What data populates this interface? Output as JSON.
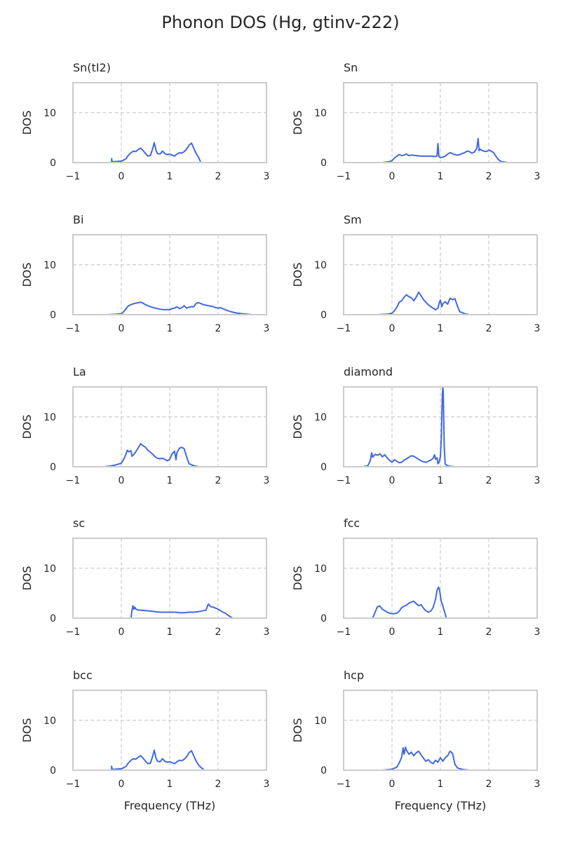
{
  "figure": {
    "title": "Phonon DOS (Hg, gtinv-222)"
  },
  "style": {
    "line_color": "#4169e1",
    "grid_color": "#cccccc",
    "axes_color": "#cccccc"
  },
  "chart_data": [
    {
      "type": "line",
      "title": "Sn(tI2)",
      "xlabel": "",
      "ylabel": "DOS",
      "xlim": [
        -1,
        3
      ],
      "ylim": [
        0,
        16
      ],
      "xticks": [
        -1,
        0,
        1,
        2,
        3
      ],
      "yticks": [
        0,
        10
      ],
      "grid": true,
      "series": [
        {
          "x": [
            -0.2,
            -0.2,
            -0.19,
            -0.15,
            0,
            0.05,
            0.1,
            0.15,
            0.2,
            0.25,
            0.3,
            0.35,
            0.4,
            0.45,
            0.5,
            0.55,
            0.6,
            0.65,
            0.68,
            0.7,
            0.72,
            0.75,
            0.8,
            0.85,
            0.9,
            0.95,
            1.0,
            1.05,
            1.1,
            1.15,
            1.2,
            1.25,
            1.3,
            1.35,
            1.4,
            1.45,
            1.5,
            1.55,
            1.6,
            1.62,
            1.64
          ],
          "y": [
            0.1,
            0.8,
            0.15,
            0.2,
            0.3,
            0.5,
            0.8,
            1.5,
            2.0,
            2.3,
            2.2,
            2.6,
            2.9,
            2.4,
            1.8,
            1.3,
            1.4,
            2.8,
            4.0,
            3.2,
            2.3,
            1.8,
            1.7,
            2.3,
            1.8,
            1.6,
            1.7,
            1.5,
            1.3,
            1.7,
            2.0,
            1.9,
            2.2,
            2.7,
            3.5,
            3.9,
            2.8,
            1.8,
            1.0,
            0.5,
            0.2
          ]
        }
      ]
    },
    {
      "type": "line",
      "title": "Sn",
      "xlabel": "",
      "ylabel": "DOS",
      "xlim": [
        -1,
        3
      ],
      "ylim": [
        0,
        16
      ],
      "xticks": [
        -1,
        0,
        1,
        2,
        3
      ],
      "yticks": [
        0,
        10
      ],
      "grid": true,
      "series": [
        {
          "x": [
            -0.2,
            -0.05,
            0,
            0.05,
            0.1,
            0.15,
            0.2,
            0.25,
            0.3,
            0.35,
            0.4,
            0.5,
            0.6,
            0.7,
            0.8,
            0.9,
            0.93,
            0.95,
            0.97,
            1.0,
            1.05,
            1.1,
            1.15,
            1.2,
            1.25,
            1.3,
            1.35,
            1.4,
            1.45,
            1.5,
            1.55,
            1.6,
            1.65,
            1.7,
            1.75,
            1.78,
            1.8,
            1.82,
            1.85,
            1.9,
            1.95,
            2.0,
            2.05,
            2.1,
            2.15,
            2.2,
            2.25,
            2.4
          ],
          "y": [
            0,
            0.2,
            0.4,
            0.9,
            1.3,
            1.6,
            1.4,
            1.5,
            1.7,
            1.4,
            1.5,
            1.4,
            1.3,
            1.3,
            1.3,
            1.2,
            1.3,
            3.8,
            1.2,
            1.0,
            1.1,
            1.3,
            1.7,
            2.0,
            1.8,
            1.6,
            1.5,
            1.6,
            1.8,
            2.0,
            2.3,
            2.2,
            1.9,
            2.1,
            2.8,
            4.8,
            2.4,
            2.7,
            2.5,
            2.3,
            2.2,
            2.5,
            2.3,
            2.0,
            1.2,
            0.6,
            0.2,
            0
          ]
        }
      ]
    },
    {
      "type": "line",
      "title": "Bi",
      "xlabel": "",
      "ylabel": "DOS",
      "xlim": [
        -1,
        3
      ],
      "ylim": [
        0,
        16
      ],
      "xticks": [
        -1,
        0,
        1,
        2,
        3
      ],
      "yticks": [
        0,
        10
      ],
      "grid": true,
      "series": [
        {
          "x": [
            -0.3,
            -0.1,
            0,
            0.05,
            0.1,
            0.15,
            0.2,
            0.25,
            0.3,
            0.35,
            0.4,
            0.45,
            0.5,
            0.55,
            0.6,
            0.7,
            0.8,
            0.9,
            1.0,
            1.05,
            1.1,
            1.15,
            1.2,
            1.25,
            1.3,
            1.35,
            1.4,
            1.45,
            1.5,
            1.55,
            1.6,
            1.65,
            1.7,
            1.75,
            1.8,
            1.85,
            1.9,
            1.95,
            2.0,
            2.05,
            2.1,
            2.2,
            2.3,
            2.4,
            2.5,
            2.6,
            2.7
          ],
          "y": [
            0,
            0.1,
            0.2,
            0.6,
            1.2,
            1.8,
            2.0,
            2.2,
            2.3,
            2.4,
            2.5,
            2.3,
            2.0,
            1.8,
            1.6,
            1.3,
            1.1,
            1.0,
            1.0,
            1.2,
            1.3,
            1.6,
            1.2,
            1.4,
            1.8,
            1.3,
            1.5,
            1.6,
            1.6,
            2.3,
            2.4,
            2.2,
            2.0,
            1.9,
            1.8,
            1.7,
            1.6,
            1.4,
            1.3,
            1.4,
            1.2,
            0.8,
            0.5,
            0.3,
            0.2,
            0.1,
            0
          ]
        }
      ]
    },
    {
      "type": "line",
      "title": "Sm",
      "xlabel": "",
      "ylabel": "DOS",
      "xlim": [
        -1,
        3
      ],
      "ylim": [
        0,
        16
      ],
      "xticks": [
        -1,
        0,
        1,
        2,
        3
      ],
      "yticks": [
        0,
        10
      ],
      "grid": true,
      "series": [
        {
          "x": [
            -0.3,
            -0.1,
            0,
            0.05,
            0.1,
            0.15,
            0.2,
            0.25,
            0.3,
            0.35,
            0.4,
            0.45,
            0.5,
            0.55,
            0.6,
            0.65,
            0.7,
            0.75,
            0.8,
            0.85,
            0.9,
            0.95,
            0.98,
            1.0,
            1.03,
            1.05,
            1.1,
            1.15,
            1.2,
            1.25,
            1.3,
            1.35,
            1.4,
            1.5,
            1.6
          ],
          "y": [
            0,
            0.1,
            0.3,
            0.8,
            1.5,
            2.5,
            2.8,
            3.5,
            4.0,
            3.6,
            3.4,
            2.8,
            3.5,
            4.5,
            3.8,
            3.0,
            2.5,
            2.0,
            1.6,
            1.3,
            1.0,
            1.3,
            2.5,
            2.9,
            1.6,
            2.2,
            2.6,
            2.1,
            3.3,
            3.0,
            3.2,
            1.8,
            0.6,
            0.2,
            0
          ]
        }
      ]
    },
    {
      "type": "line",
      "title": "La",
      "xlabel": "",
      "ylabel": "DOS",
      "xlim": [
        -1,
        3
      ],
      "ylim": [
        0,
        16
      ],
      "xticks": [
        -1,
        0,
        1,
        2,
        3
      ],
      "yticks": [
        0,
        10
      ],
      "grid": true,
      "series": [
        {
          "x": [
            -0.35,
            -0.2,
            -0.1,
            0,
            0.05,
            0.1,
            0.12,
            0.15,
            0.2,
            0.22,
            0.25,
            0.3,
            0.35,
            0.4,
            0.45,
            0.5,
            0.55,
            0.6,
            0.65,
            0.7,
            0.75,
            0.8,
            0.85,
            0.9,
            0.95,
            1.0,
            1.05,
            1.1,
            1.13,
            1.15,
            1.2,
            1.25,
            1.3,
            1.35,
            1.4,
            1.5,
            1.6
          ],
          "y": [
            0,
            0.2,
            0.4,
            0.7,
            1.5,
            2.6,
            3.3,
            3.0,
            3.2,
            2.1,
            2.4,
            3.0,
            3.8,
            4.6,
            4.2,
            3.9,
            3.3,
            2.9,
            2.5,
            2.0,
            1.7,
            1.6,
            1.7,
            1.5,
            1.2,
            1.5,
            2.6,
            3.1,
            1.4,
            2.8,
            3.7,
            3.9,
            3.6,
            2.0,
            0.6,
            0.2,
            0
          ]
        }
      ]
    },
    {
      "type": "line",
      "title": "diamond",
      "xlabel": "",
      "ylabel": "DOS",
      "xlim": [
        -1,
        3
      ],
      "ylim": [
        0,
        16
      ],
      "xticks": [
        -1,
        0,
        1,
        2,
        3
      ],
      "yticks": [
        0,
        10
      ],
      "grid": true,
      "series": [
        {
          "x": [
            -0.6,
            -0.5,
            -0.45,
            -0.42,
            -0.4,
            -0.35,
            -0.3,
            -0.25,
            -0.2,
            -0.15,
            -0.1,
            -0.05,
            0,
            0.05,
            0.1,
            0.15,
            0.2,
            0.25,
            0.3,
            0.35,
            0.4,
            0.45,
            0.5,
            0.55,
            0.6,
            0.65,
            0.7,
            0.75,
            0.8,
            0.85,
            0.88,
            0.9,
            0.93,
            0.95,
            0.97,
            1.0,
            1.02,
            1.04,
            1.05,
            1.06,
            1.08,
            1.1,
            1.15,
            1.2,
            1.3
          ],
          "y": [
            0,
            0.2,
            1.2,
            2.8,
            1.9,
            2.5,
            2.3,
            2.6,
            2.0,
            2.4,
            1.8,
            1.3,
            0.9,
            1.4,
            1.1,
            0.8,
            0.9,
            1.3,
            1.6,
            1.9,
            2.2,
            2.1,
            1.8,
            1.5,
            1.2,
            1.0,
            0.9,
            1.1,
            1.3,
            1.7,
            2.4,
            1.5,
            1.8,
            0.6,
            0.8,
            2.0,
            6.0,
            14.5,
            16.0,
            15.0,
            4.0,
            0.5,
            0.2,
            0.1,
            0
          ]
        }
      ]
    },
    {
      "type": "line",
      "title": "sc",
      "xlabel": "",
      "ylabel": "DOS",
      "xlim": [
        -1,
        3
      ],
      "ylim": [
        0,
        16
      ],
      "xticks": [
        -1,
        0,
        1,
        2,
        3
      ],
      "yticks": [
        0,
        10
      ],
      "grid": true,
      "series": [
        {
          "x": [
            0.2,
            0.22,
            0.24,
            0.26,
            0.28,
            0.3,
            0.35,
            0.4,
            0.5,
            0.6,
            0.7,
            0.8,
            0.9,
            1.0,
            1.1,
            1.2,
            1.3,
            1.4,
            1.5,
            1.6,
            1.7,
            1.75,
            1.78,
            1.8,
            1.83,
            1.85,
            1.9,
            1.95,
            2.0,
            2.05,
            2.1,
            2.15,
            2.2,
            2.25,
            2.3
          ],
          "y": [
            0,
            1.5,
            2.5,
            1.8,
            2.2,
            1.8,
            1.6,
            1.6,
            1.5,
            1.4,
            1.3,
            1.2,
            1.2,
            1.2,
            1.2,
            1.1,
            1.1,
            1.2,
            1.2,
            1.3,
            1.5,
            1.6,
            2.4,
            2.8,
            2.5,
            2.3,
            2.2,
            2.0,
            1.8,
            1.5,
            1.2,
            1.0,
            0.6,
            0.3,
            0
          ]
        }
      ]
    },
    {
      "type": "line",
      "title": "fcc",
      "xlabel": "",
      "ylabel": "DOS",
      "xlim": [
        -1,
        3
      ],
      "ylim": [
        0,
        16
      ],
      "xticks": [
        -1,
        0,
        1,
        2,
        3
      ],
      "yticks": [
        0,
        10
      ],
      "grid": true,
      "series": [
        {
          "x": [
            -0.4,
            -0.35,
            -0.3,
            -0.25,
            -0.2,
            -0.15,
            -0.1,
            -0.05,
            0,
            0.05,
            0.1,
            0.15,
            0.2,
            0.25,
            0.3,
            0.35,
            0.4,
            0.45,
            0.5,
            0.55,
            0.6,
            0.65,
            0.7,
            0.75,
            0.8,
            0.85,
            0.9,
            0.93,
            0.96,
            0.98,
            1.0,
            1.02,
            1.05,
            1.07,
            1.1,
            1.12
          ],
          "y": [
            0,
            1.2,
            2.3,
            2.4,
            1.8,
            1.5,
            1.2,
            1.0,
            0.9,
            0.9,
            1.0,
            1.4,
            2.1,
            2.4,
            2.6,
            3.0,
            3.2,
            3.4,
            2.9,
            2.5,
            2.7,
            2.0,
            1.5,
            1.2,
            1.4,
            2.1,
            3.8,
            5.5,
            6.2,
            5.8,
            4.5,
            3.3,
            2.5,
            1.8,
            0.8,
            0
          ]
        }
      ]
    },
    {
      "type": "line",
      "title": "bcc",
      "xlabel": "Frequency (THz)",
      "ylabel": "DOS",
      "xlim": [
        -1,
        3
      ],
      "ylim": [
        0,
        16
      ],
      "xticks": [
        -1,
        0,
        1,
        2,
        3
      ],
      "yticks": [
        0,
        10
      ],
      "grid": true,
      "series": [
        {
          "x": [
            -0.2,
            -0.2,
            -0.19,
            -0.15,
            0,
            0.05,
            0.1,
            0.15,
            0.2,
            0.25,
            0.3,
            0.35,
            0.4,
            0.45,
            0.5,
            0.55,
            0.6,
            0.65,
            0.68,
            0.7,
            0.72,
            0.75,
            0.8,
            0.85,
            0.9,
            0.95,
            1.0,
            1.05,
            1.1,
            1.15,
            1.2,
            1.25,
            1.3,
            1.35,
            1.4,
            1.45,
            1.5,
            1.55,
            1.6,
            1.65,
            1.7
          ],
          "y": [
            0.1,
            0.8,
            0.15,
            0.2,
            0.3,
            0.5,
            0.8,
            1.5,
            2.0,
            2.3,
            2.2,
            2.6,
            2.9,
            2.4,
            1.8,
            1.3,
            1.4,
            2.8,
            4.0,
            3.2,
            2.3,
            1.8,
            1.7,
            2.3,
            1.8,
            1.6,
            1.7,
            1.5,
            1.3,
            1.7,
            2.0,
            1.9,
            2.2,
            2.7,
            3.5,
            3.9,
            2.8,
            1.8,
            1.0,
            0.5,
            0.2
          ]
        }
      ]
    },
    {
      "type": "line",
      "title": "hcp",
      "xlabel": "Frequency (THz)",
      "ylabel": "DOS",
      "xlim": [
        -1,
        3
      ],
      "ylim": [
        0,
        16
      ],
      "xticks": [
        -1,
        0,
        1,
        2,
        3
      ],
      "yticks": [
        0,
        10
      ],
      "grid": true,
      "series": [
        {
          "x": [
            -0.2,
            0,
            0.1,
            0.15,
            0.2,
            0.23,
            0.25,
            0.28,
            0.3,
            0.35,
            0.4,
            0.45,
            0.5,
            0.55,
            0.6,
            0.65,
            0.7,
            0.75,
            0.8,
            0.85,
            0.9,
            0.95,
            1.0,
            1.05,
            1.1,
            1.15,
            1.2,
            1.25,
            1.3,
            1.35,
            1.4,
            1.5,
            1.6
          ],
          "y": [
            0,
            0.2,
            0.6,
            1.5,
            2.6,
            4.5,
            3.2,
            4.6,
            4.0,
            3.2,
            3.6,
            2.9,
            3.5,
            3.8,
            3.1,
            2.4,
            1.8,
            2.1,
            1.6,
            1.3,
            2.0,
            1.6,
            2.5,
            1.8,
            2.5,
            2.9,
            3.8,
            3.4,
            1.2,
            0.5,
            0.3,
            0.1,
            0
          ]
        }
      ]
    }
  ]
}
